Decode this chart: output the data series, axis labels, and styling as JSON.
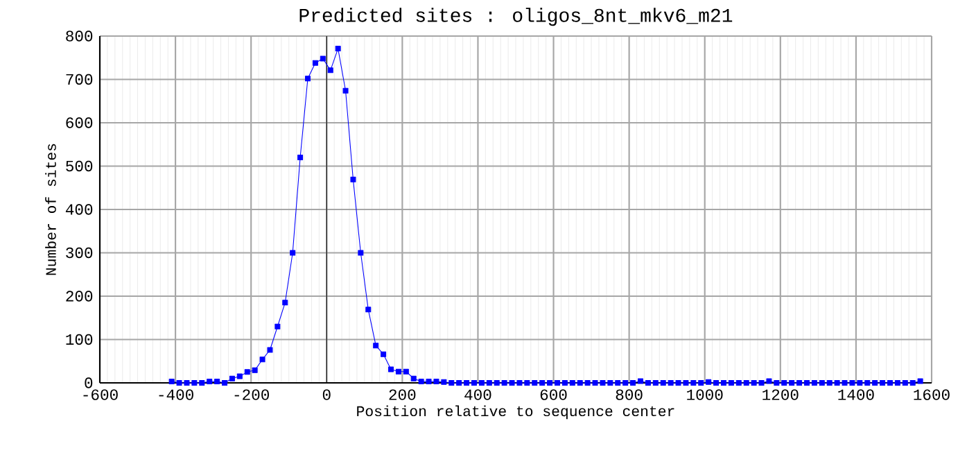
{
  "chart_data": {
    "type": "line",
    "title": "Predicted sites : oligos_8nt_mkv6_m21",
    "xlabel": "Position relative to sequence center",
    "ylabel": "Number of sites",
    "x": [
      -410,
      -390,
      -370,
      -350,
      -330,
      -310,
      -290,
      -270,
      -250,
      -230,
      -210,
      -190,
      -170,
      -150,
      -130,
      -110,
      -90,
      -70,
      -50,
      -30,
      -10,
      10,
      30,
      50,
      70,
      90,
      110,
      130,
      150,
      170,
      190,
      210,
      230,
      250,
      270,
      290,
      310,
      330,
      350,
      370,
      390,
      410,
      430,
      450,
      470,
      490,
      510,
      530,
      550,
      570,
      590,
      610,
      630,
      650,
      670,
      690,
      710,
      730,
      750,
      770,
      790,
      810,
      830,
      850,
      870,
      890,
      910,
      930,
      950,
      970,
      990,
      1010,
      1030,
      1050,
      1070,
      1090,
      1110,
      1130,
      1150,
      1170,
      1190,
      1210,
      1230,
      1250,
      1270,
      1290,
      1310,
      1330,
      1350,
      1370,
      1390,
      1410,
      1430,
      1450,
      1470,
      1490,
      1510,
      1530,
      1550,
      1570
    ],
    "series": [
      {
        "color": "#0000ff",
        "values": [
          3,
          0,
          0,
          0,
          0,
          3,
          3,
          0,
          10,
          15,
          25,
          29,
          54,
          76,
          130,
          185,
          300,
          520,
          702,
          738,
          748,
          721,
          771,
          674,
          469,
          300,
          169,
          86,
          66,
          31,
          26,
          26,
          10,
          3,
          3,
          3,
          2,
          0,
          0,
          0,
          0,
          0,
          0,
          0,
          0,
          0,
          0,
          0,
          0,
          0,
          0,
          0,
          0,
          0,
          0,
          0,
          0,
          0,
          0,
          0,
          0,
          0,
          4,
          0,
          0,
          0,
          0,
          0,
          0,
          0,
          0,
          2,
          0,
          0,
          0,
          0,
          0,
          0,
          0,
          4,
          0,
          0,
          0,
          0,
          0,
          0,
          0,
          0,
          0,
          0,
          0,
          0,
          0,
          0,
          0,
          0,
          0,
          0,
          0,
          4
        ]
      }
    ],
    "xlim": [
      -600,
      1600
    ],
    "ylim": [
      0,
      800
    ],
    "xticks": [
      -600,
      -400,
      -200,
      0,
      200,
      400,
      600,
      800,
      1000,
      1200,
      1400,
      1600
    ],
    "yticks": [
      0,
      100,
      200,
      300,
      400,
      500,
      600,
      700,
      800
    ],
    "ref_lines": [
      {
        "axis": "x",
        "value": 0,
        "color": "#000000"
      }
    ],
    "grid": true,
    "marker": "square",
    "line_style": "solid"
  }
}
